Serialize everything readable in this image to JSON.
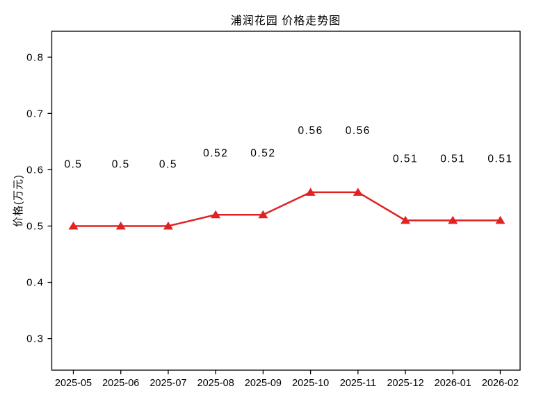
{
  "chart_data": {
    "type": "line",
    "title": "浦润花园 价格走势图",
    "xlabel": "",
    "ylabel": "价格(万元)",
    "categories": [
      "2025-05",
      "2025-06",
      "2025-07",
      "2025-08",
      "2025-09",
      "2025-10",
      "2025-11",
      "2025-12",
      "2026-01",
      "2026-02"
    ],
    "series": [
      {
        "name": "价格",
        "values": [
          0.5,
          0.5,
          0.5,
          0.52,
          0.52,
          0.56,
          0.56,
          0.51,
          0.51,
          0.51
        ],
        "data_labels": [
          "0.5",
          "0.5",
          "0.5",
          "0.52",
          "0.52",
          "0.56",
          "0.56",
          "0.51",
          "0.51",
          "0.51"
        ]
      }
    ],
    "yticks": [
      "0.3",
      "0.4",
      "0.5",
      "0.6",
      "0.7",
      "0.8"
    ],
    "ytick_values": [
      0.3,
      0.4,
      0.5,
      0.6,
      0.7,
      0.8
    ],
    "ylim": [
      0.244,
      0.846
    ],
    "grid": false,
    "legend_position": "none",
    "line_color": "#e02222",
    "marker": "triangle-up",
    "marker_color": "#e02222",
    "axis_color": "#000000",
    "text_color": "#000000",
    "background_color": "#ffffff"
  }
}
